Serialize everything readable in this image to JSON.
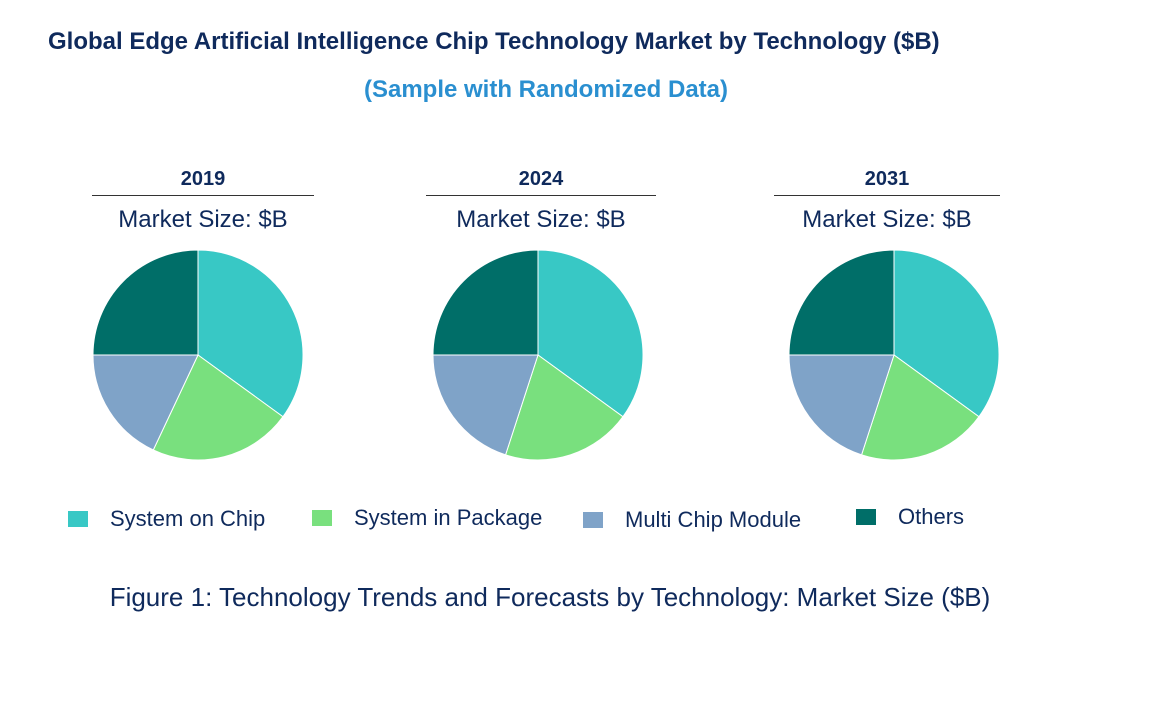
{
  "title": "Global Edge Artificial Intelligence Chip Technology Market by Technology ($B)",
  "subtitle": "(Sample with Randomized Data)",
  "caption": "Figure 1: Technology Trends and Forecasts by Technology: Market Size ($B)",
  "colors": {
    "System on Chip": "#38c8c5",
    "System in Package": "#79e07e",
    "Multi Chip Module": "#7fa3c8",
    "Others": "#006e68"
  },
  "chart_data": [
    {
      "type": "pie",
      "title": "2019",
      "subtitle": "Market Size: $B",
      "labels": [
        "System on Chip",
        "System in Package",
        "Multi Chip Module",
        "Others"
      ],
      "values": [
        35,
        22,
        18,
        25
      ]
    },
    {
      "type": "pie",
      "title": "2024",
      "subtitle": "Market Size: $B",
      "labels": [
        "System on Chip",
        "System in Package",
        "Multi Chip Module",
        "Others"
      ],
      "values": [
        35,
        20,
        20,
        25
      ]
    },
    {
      "type": "pie",
      "title": "2031",
      "subtitle": "Market Size: $B",
      "labels": [
        "System on Chip",
        "System in Package",
        "Multi Chip Module",
        "Others"
      ],
      "values": [
        35,
        20,
        20,
        25
      ]
    }
  ],
  "legend": [
    "System on Chip",
    "System in Package",
    "Multi Chip Module",
    "Others"
  ]
}
